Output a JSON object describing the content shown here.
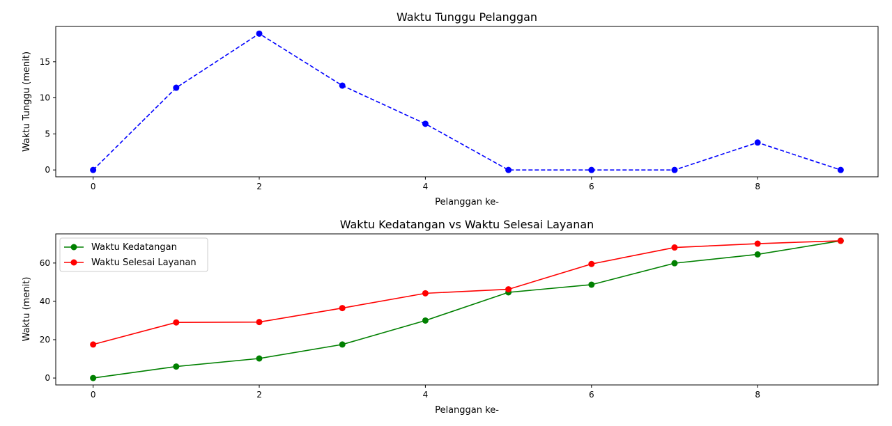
{
  "chart_data": [
    {
      "type": "line",
      "title": "Waktu Tunggu Pelanggan",
      "xlabel": "Pelanggan ke-",
      "ylabel": "Waktu Tunggu (menit)",
      "xlim": [
        -0.45,
        9.45
      ],
      "ylim": [
        -0.95,
        19.9
      ],
      "xticks": [
        0,
        2,
        4,
        6,
        8
      ],
      "yticks": [
        0,
        5,
        10,
        15
      ],
      "x": [
        0,
        1,
        2,
        3,
        4,
        5,
        6,
        7,
        8,
        9
      ],
      "grid": false,
      "legend": "none",
      "series": [
        {
          "color": "#0000ff",
          "linestyle": "dashed",
          "marker": "circle",
          "values": [
            0,
            11.4,
            18.9,
            11.7,
            6.4,
            0,
            0,
            0,
            3.8,
            0
          ]
        }
      ]
    },
    {
      "type": "line",
      "title": "Waktu Kedatangan vs Waktu Selesai Layanan",
      "xlabel": "Pelanggan ke-",
      "ylabel": "Waktu (menit)",
      "xlim": [
        -0.45,
        9.45
      ],
      "ylim": [
        -3.6,
        75.2
      ],
      "xticks": [
        0,
        2,
        4,
        6,
        8
      ],
      "yticks": [
        0,
        20,
        40,
        60
      ],
      "x": [
        0,
        1,
        2,
        3,
        4,
        5,
        6,
        7,
        8,
        9
      ],
      "grid": false,
      "legend": "top-left",
      "series": [
        {
          "name": "Waktu Kedatangan",
          "color": "#008000",
          "linestyle": "solid",
          "marker": "circle",
          "values": [
            0,
            6,
            10.2,
            17.5,
            30,
            44.7,
            48.7,
            59.9,
            64.5,
            71.6
          ]
        },
        {
          "name": "Waktu Selesai Layanan",
          "color": "#ff0000",
          "linestyle": "solid",
          "marker": "circle",
          "values": [
            17.5,
            29,
            29.2,
            36.5,
            44.2,
            46.3,
            59.5,
            68.1,
            70.1,
            71.6
          ]
        }
      ]
    }
  ]
}
